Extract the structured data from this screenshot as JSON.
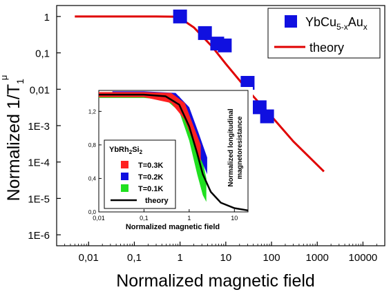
{
  "chart_data": [
    {
      "type": "scatter",
      "xlabel": "Normalized magnetic field",
      "ylabel_main": "Normalized 1/T",
      "ylabel_sub": "1",
      "ylabel_sup": "μ",
      "xscale": "log",
      "yscale": "log",
      "xlim": [
        0.002,
        30000
      ],
      "ylim": [
        5e-07,
        2
      ],
      "xticks": [
        {
          "v": 0.01,
          "label": "0,01"
        },
        {
          "v": 0.1,
          "label": "0,1"
        },
        {
          "v": 1,
          "label": "1"
        },
        {
          "v": 10,
          "label": "10"
        },
        {
          "v": 100,
          "label": "100"
        },
        {
          "v": 1000,
          "label": "1000"
        },
        {
          "v": 10000,
          "label": "10000"
        }
      ],
      "yticks": [
        {
          "v": 1,
          "label": "1"
        },
        {
          "v": 0.1,
          "label": "0,1"
        },
        {
          "v": 0.01,
          "label": "0,01"
        },
        {
          "v": 0.001,
          "label": "1E-3"
        },
        {
          "v": 0.0001,
          "label": "1E-4"
        },
        {
          "v": 1e-05,
          "label": "1E-5"
        },
        {
          "v": 1e-06,
          "label": "1E-6"
        }
      ],
      "legend": {
        "placement": "top-right",
        "entries": [
          {
            "label_main": "YbCu",
            "label_sub1": "5-x",
            "label_mid": "Au",
            "label_sub2": "x",
            "marker": "square",
            "color": "#1010e0"
          },
          {
            "label": "theory",
            "marker": "line",
            "color": "#e00000"
          }
        ]
      },
      "series": [
        {
          "name": "YbCu5-xAux",
          "marker": "square",
          "color": "#1010e0",
          "points": [
            {
              "x": 1.0,
              "y": 1.0
            },
            {
              "x": 3.5,
              "y": 0.35
            },
            {
              "x": 6.5,
              "y": 0.18
            },
            {
              "x": 9.5,
              "y": 0.16
            },
            {
              "x": 30,
              "y": 0.015
            },
            {
              "x": 55,
              "y": 0.0032
            },
            {
              "x": 80,
              "y": 0.0018
            }
          ]
        },
        {
          "name": "theory",
          "type": "line",
          "color": "#e00000",
          "points": [
            {
              "x": 0.005,
              "y": 1.0
            },
            {
              "x": 0.05,
              "y": 1.0
            },
            {
              "x": 0.3,
              "y": 1.0
            },
            {
              "x": 0.7,
              "y": 0.99
            },
            {
              "x": 1.0,
              "y": 0.9
            },
            {
              "x": 2.0,
              "y": 0.5
            },
            {
              "x": 5.0,
              "y": 0.15
            },
            {
              "x": 10,
              "y": 0.05
            },
            {
              "x": 30,
              "y": 0.0095
            },
            {
              "x": 100,
              "y": 0.0018
            },
            {
              "x": 300,
              "y": 0.00037
            },
            {
              "x": 1400,
              "y": 5.5e-05
            }
          ]
        }
      ]
    },
    {
      "type": "scatter",
      "placement": "inset",
      "xlabel": "Normalized magnetic field",
      "ylabel_line1": "Normalized longitudinal",
      "ylabel_line2": "magnetoresistance",
      "xscale": "log",
      "yscale": "linear",
      "xlim": [
        0.01,
        20
      ],
      "ylim": [
        0,
        1.45
      ],
      "xticks": [
        {
          "v": 0.01,
          "label": "0,01"
        },
        {
          "v": 0.1,
          "label": "0,1"
        },
        {
          "v": 1,
          "label": "1"
        },
        {
          "v": 10,
          "label": "10"
        }
      ],
      "yticks": [
        {
          "v": 0,
          "label": "0,0"
        },
        {
          "v": 0.4,
          "label": "0,4"
        },
        {
          "v": 0.8,
          "label": "0,8"
        },
        {
          "v": 1.2,
          "label": "1,2"
        }
      ],
      "legend": {
        "placement": "bottom-left",
        "title_main": "YbRh",
        "title_sub1": "2",
        "title_mid": "Si",
        "title_sub2": "2",
        "entries": [
          {
            "label": "T=0.3K",
            "color": "#ff2020"
          },
          {
            "label": "T=0.2K",
            "color": "#1010e0"
          },
          {
            "label": "T=0.1K",
            "color": "#20e020"
          },
          {
            "label": "theory",
            "color": "#000000"
          }
        ]
      },
      "series": [
        {
          "name": "T=0.1K",
          "color": "#20e020",
          "band": [
            {
              "x": 0.01,
              "lo": 1.36,
              "hi": 1.42
            },
            {
              "x": 0.1,
              "lo": 1.36,
              "hi": 1.42
            },
            {
              "x": 0.3,
              "lo": 1.34,
              "hi": 1.42
            },
            {
              "x": 0.6,
              "lo": 1.2,
              "hi": 1.38
            },
            {
              "x": 1.0,
              "lo": 0.85,
              "hi": 1.2
            },
            {
              "x": 1.5,
              "lo": 0.45,
              "hi": 0.9
            },
            {
              "x": 2.0,
              "lo": 0.2,
              "hi": 0.6
            },
            {
              "x": 2.4,
              "lo": 0.12,
              "hi": 0.4
            }
          ]
        },
        {
          "name": "T=0.2K",
          "color": "#1010e0",
          "band": [
            {
              "x": 0.02,
              "lo": 1.38,
              "hi": 1.44
            },
            {
              "x": 0.1,
              "lo": 1.38,
              "hi": 1.44
            },
            {
              "x": 0.5,
              "lo": 1.32,
              "hi": 1.42
            },
            {
              "x": 1.0,
              "lo": 1.05,
              "hi": 1.25
            },
            {
              "x": 1.6,
              "lo": 0.7,
              "hi": 0.95
            },
            {
              "x": 2.5,
              "lo": 0.45,
              "hi": 0.65
            }
          ]
        },
        {
          "name": "T=0.3K",
          "color": "#ff2020",
          "band": [
            {
              "x": 0.01,
              "lo": 1.37,
              "hi": 1.43
            },
            {
              "x": 0.1,
              "lo": 1.37,
              "hi": 1.43
            },
            {
              "x": 0.4,
              "lo": 1.3,
              "hi": 1.42
            },
            {
              "x": 0.8,
              "lo": 1.1,
              "hi": 1.3
            },
            {
              "x": 1.2,
              "lo": 0.85,
              "hi": 1.05
            },
            {
              "x": 1.8,
              "lo": 0.6,
              "hi": 0.8
            }
          ]
        },
        {
          "name": "theory",
          "type": "line",
          "color": "#000000",
          "points": [
            {
              "x": 0.01,
              "y": 1.4
            },
            {
              "x": 0.1,
              "y": 1.4
            },
            {
              "x": 0.3,
              "y": 1.38
            },
            {
              "x": 0.6,
              "y": 1.28
            },
            {
              "x": 1.0,
              "y": 1.02
            },
            {
              "x": 1.5,
              "y": 0.7
            },
            {
              "x": 2.0,
              "y": 0.45
            },
            {
              "x": 3.0,
              "y": 0.24
            },
            {
              "x": 5.0,
              "y": 0.11
            },
            {
              "x": 10,
              "y": 0.045
            },
            {
              "x": 20,
              "y": 0.018
            }
          ]
        }
      ]
    }
  ]
}
